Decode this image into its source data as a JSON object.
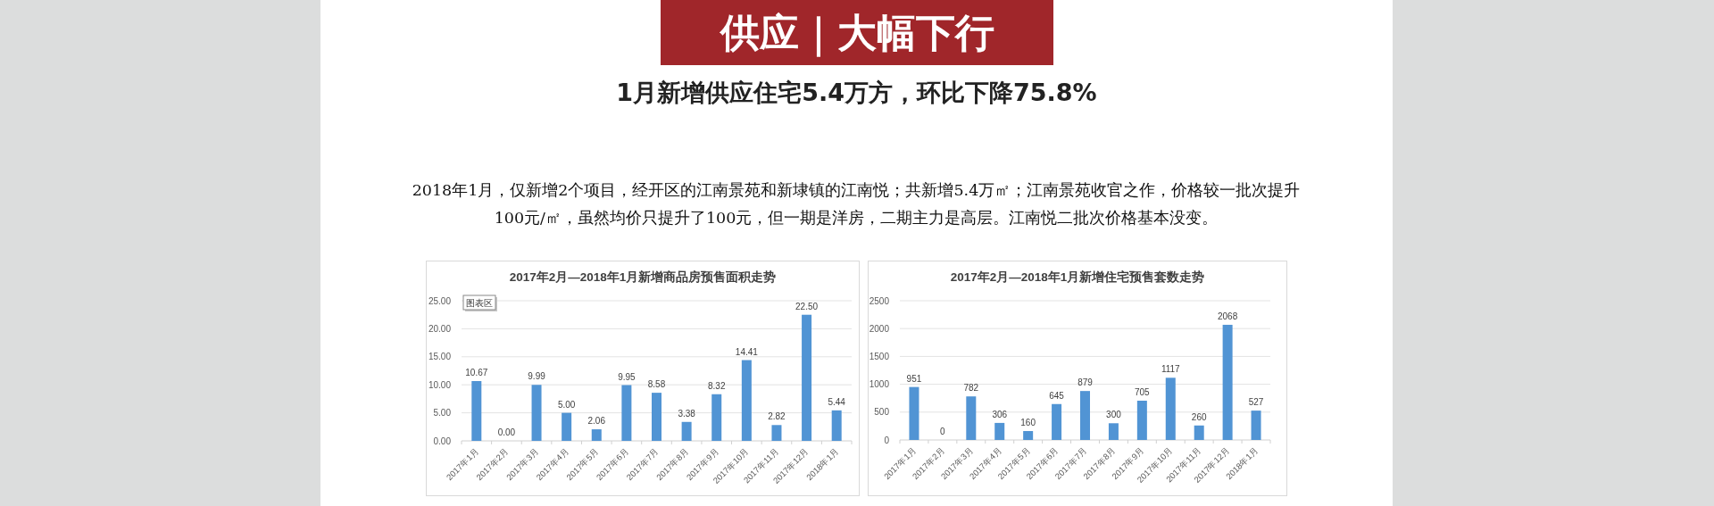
{
  "chart_data": [
    {
      "type": "other",
      "title": "供应｜大幅下行",
      "subtitle": "1月新增供应住宅5.4万方，环比下降75.8%",
      "annotations": [
        "2018年1月，仅新增2个项目，经开区的江南景苑和新埭镇的江南悦；共新增5.4万㎡；江南景苑收官之作，价格较一批次提升100元/㎡，虽然均价只提升了100元，但一期是洋房，二期主力是高层。江南悦二批次价格基本没变。"
      ]
    },
    {
      "type": "bar",
      "title": "2017年2月—2018年1月新增商品房预售面积走势",
      "categories": [
        "2017年1月",
        "2017年2月",
        "2017年3月",
        "2017年4月",
        "2017年5月",
        "2017年6月",
        "2017年7月",
        "2017年8月",
        "2017年9月",
        "2017年10月",
        "2017年11月",
        "2017年12月",
        "2018年1月"
      ],
      "values": [
        10.67,
        0,
        9.99,
        5,
        2.06,
        9.95,
        8.58,
        3.38,
        8.32,
        14.41,
        2.82,
        22.5,
        5.44
      ],
      "value_labels": [
        "10.67",
        "0.00",
        "9.99",
        "5.00",
        "2.06",
        "9.95",
        "8.58",
        "3.38",
        "8.32",
        "14.41",
        "2.82",
        "22.50",
        "5.44"
      ],
      "color": "#5194d4",
      "ylim": [
        0,
        25
      ],
      "yticks": [
        {
          "value": 0,
          "label": "0.00"
        },
        {
          "value": 5,
          "label": "5.00"
        },
        {
          "value": 10,
          "label": "10.00"
        },
        {
          "value": 15,
          "label": "15.00"
        },
        {
          "value": 20,
          "label": "20.00"
        },
        {
          "value": 25,
          "label": "25.00"
        }
      ],
      "grid": "y",
      "annotations": [
        "图表区"
      ]
    },
    {
      "type": "bar",
      "title": "2017年2月—2018年1月新增住宅预售套数走势",
      "categories": [
        "2017年1月",
        "2017年2月",
        "2017年3月",
        "2017年4月",
        "2017年5月",
        "2017年6月",
        "2017年7月",
        "2017年8月",
        "2017年9月",
        "2017年10月",
        "2017年11月",
        "2017年12月",
        "2018年1月"
      ],
      "values": [
        951,
        0,
        782,
        306,
        160,
        645,
        879,
        300,
        705,
        1117,
        260,
        2068,
        527
      ],
      "color": "#5194d4",
      "ylim": [
        0,
        2500
      ],
      "yticks": [
        0,
        500,
        1000,
        1500,
        2000,
        2500
      ],
      "grid": "y",
      "data_labels": true
    }
  ]
}
